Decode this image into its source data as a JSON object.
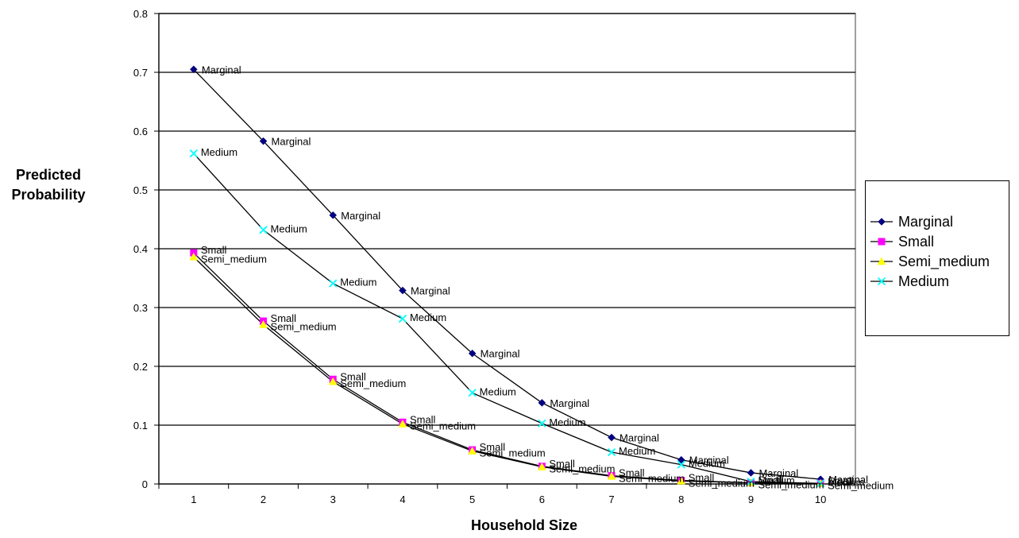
{
  "chart_data": {
    "type": "line",
    "title": "",
    "xlabel": "Household Size",
    "ylabel": "Predicted\nProbability",
    "x": [
      1,
      2,
      3,
      4,
      5,
      6,
      7,
      8,
      9,
      10
    ],
    "xlim": [
      0.5,
      10.5
    ],
    "ylim": [
      0,
      0.8
    ],
    "y_ticks": [
      "0",
      "0.1",
      "0.2",
      "0.3",
      "0.4",
      "0.5",
      "0.6",
      "0.7",
      "0.8"
    ],
    "x_ticks": [
      "1",
      "2",
      "3",
      "4",
      "5",
      "6",
      "7",
      "8",
      "9",
      "10"
    ],
    "grid": "horizontal",
    "legend_position": "right",
    "series": [
      {
        "name": "Marginal",
        "color": "#000080",
        "marker": "diamond",
        "values": [
          0.705,
          0.583,
          0.457,
          0.329,
          0.222,
          0.138,
          0.079,
          0.041,
          0.019,
          0.008
        ]
      },
      {
        "name": "Small",
        "color": "#FF00FF",
        "marker": "square",
        "values": [
          0.393,
          0.277,
          0.178,
          0.105,
          0.058,
          0.03,
          0.014,
          0.006,
          0.002,
          0.001
        ]
      },
      {
        "name": "Semi_medium",
        "color": "#FFFF00",
        "marker": "triangle",
        "values": [
          0.386,
          0.271,
          0.174,
          0.102,
          0.056,
          0.029,
          0.013,
          0.005,
          0.002,
          0.001
        ]
      },
      {
        "name": "Medium",
        "color": "#00FFFF",
        "marker": "x",
        "values": [
          0.562,
          0.432,
          0.341,
          0.281,
          0.155,
          0.103,
          0.054,
          0.033,
          0.004,
          0.001
        ]
      }
    ]
  }
}
